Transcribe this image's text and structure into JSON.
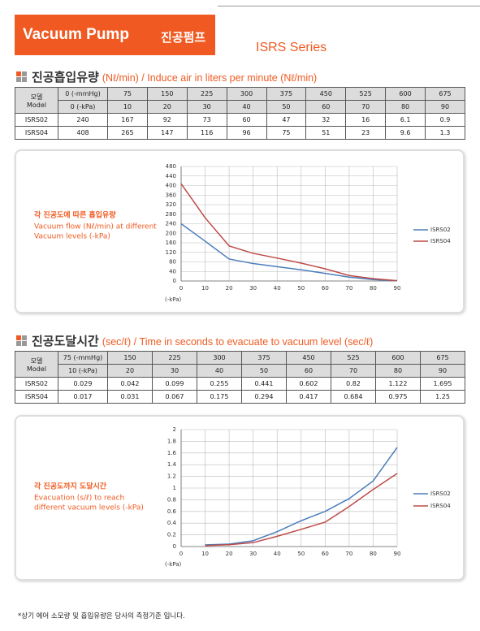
{
  "header": {
    "title": "Vacuum Pump",
    "title_ko": "진공펌프",
    "series": "ISRS Series"
  },
  "sections": [
    {
      "title": "진공흡입유량",
      "subtitle": "(Nℓ/min) / Induce air in liters per minute (Nℓ/min)",
      "table": {
        "model_label": [
          "모델",
          "Model"
        ],
        "rows": [
          [
            "0 (-mmHg)",
            "75",
            "150",
            "225",
            "300",
            "375",
            "450",
            "525",
            "600",
            "675"
          ],
          [
            "0 (-kPa)",
            "10",
            "20",
            "30",
            "40",
            "50",
            "60",
            "70",
            "80",
            "90"
          ],
          [
            "ISRS02",
            "240",
            "167",
            "92",
            "73",
            "60",
            "47",
            "32",
            "16",
            "6.1",
            "0.9"
          ],
          [
            "ISRS04",
            "408",
            "265",
            "147",
            "116",
            "96",
            "75",
            "51",
            "23",
            "9.6",
            "1.3"
          ]
        ]
      }
    },
    {
      "title": "진공도달시간",
      "subtitle": "(sec/ℓ) / Time in seconds to evacuate to vacuum level (sec/ℓ)",
      "table": {
        "model_label": [
          "모델",
          "Model"
        ],
        "rows": [
          [
            "75 (-mmHg)",
            "150",
            "225",
            "300",
            "375",
            "450",
            "525",
            "600",
            "675"
          ],
          [
            "10 (-kPa)",
            "20",
            "30",
            "40",
            "50",
            "60",
            "70",
            "80",
            "90"
          ],
          [
            "ISRS02",
            "0.029",
            "0.042",
            "0.099",
            "0.255",
            "0.441",
            "0.602",
            "0.82",
            "1.122",
            "1.695"
          ],
          [
            "ISRS04",
            "0.017",
            "0.031",
            "0.067",
            "0.175",
            "0.294",
            "0.417",
            "0.684",
            "0.975",
            "1.25"
          ]
        ]
      }
    }
  ],
  "chart_data": [
    {
      "type": "line",
      "caption": [
        "각 진공도에 따른 흡입유량",
        "Vacuum flow (Nℓ/min) at different",
        "Vacuum levels (-kPa)"
      ],
      "xlabel": "(-kPa)",
      "x": [
        0,
        10,
        20,
        30,
        40,
        50,
        60,
        70,
        80,
        90
      ],
      "xlim": [
        0,
        90
      ],
      "xticks": [
        0,
        10,
        20,
        30,
        40,
        50,
        60,
        70,
        80,
        90
      ],
      "ylim": [
        0,
        480
      ],
      "yticks": [
        0,
        40,
        80,
        120,
        160,
        200,
        240,
        280,
        320,
        360,
        400,
        440,
        480
      ],
      "grid": true,
      "legend": "right",
      "series": [
        {
          "name": "ISRS02",
          "color": "#4a7ebb",
          "values": [
            240,
            167,
            92,
            73,
            60,
            47,
            32,
            16,
            6.1,
            0.9
          ]
        },
        {
          "name": "ISRS04",
          "color": "#be4b48",
          "values": [
            408,
            265,
            147,
            116,
            96,
            75,
            51,
            23,
            9.6,
            1.3
          ]
        }
      ]
    },
    {
      "type": "line",
      "caption": [
        "각 진공도까지 도달시간",
        "Evacuation (s/ℓ) to reach",
        "different vacuum levels (-kPa)"
      ],
      "xlabel": "(-kPa)",
      "x": [
        10,
        20,
        30,
        40,
        50,
        60,
        70,
        80,
        90
      ],
      "xlim": [
        0,
        90
      ],
      "xticks": [
        0,
        10,
        20,
        30,
        40,
        50,
        60,
        70,
        80,
        90
      ],
      "ylim": [
        0,
        2
      ],
      "yticks": [
        0,
        0.2,
        0.4,
        0.6,
        0.8,
        1,
        1.2,
        1.4,
        1.6,
        1.8,
        2
      ],
      "grid": true,
      "legend": "right",
      "series": [
        {
          "name": "ISRS02",
          "color": "#4a7ebb",
          "values": [
            0.029,
            0.042,
            0.099,
            0.255,
            0.441,
            0.602,
            0.82,
            1.122,
            1.695
          ]
        },
        {
          "name": "ISRS04",
          "color": "#be4b48",
          "values": [
            0.017,
            0.031,
            0.067,
            0.175,
            0.294,
            0.417,
            0.684,
            0.975,
            1.25
          ]
        }
      ]
    }
  ],
  "footnote": "*상기 에어 소모량 및 흡입유량은 당사의 측정기준 입니다."
}
